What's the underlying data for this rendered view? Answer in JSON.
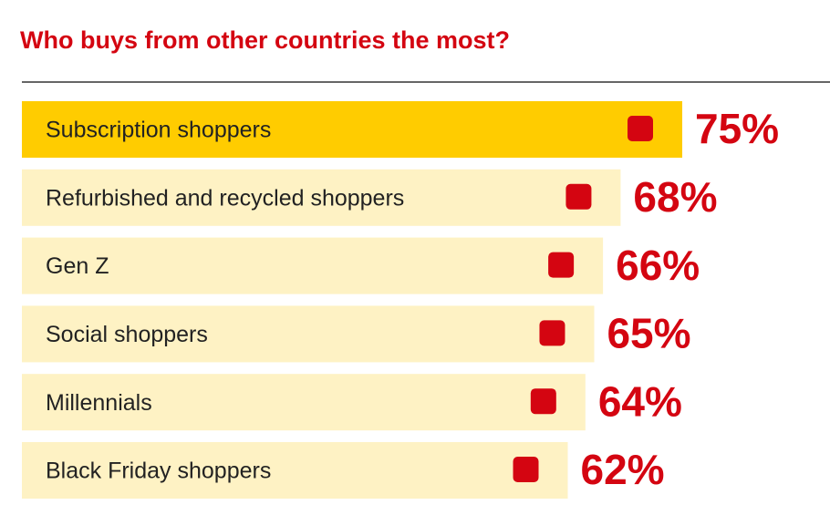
{
  "chart_data": {
    "type": "bar",
    "orientation": "horizontal",
    "title": "Who buys from other countries the most?",
    "categories": [
      "Subscription shoppers",
      "Refurbished and recycled shoppers",
      "Gen Z",
      "Social shoppers",
      "Millennials",
      "Black Friday shoppers"
    ],
    "values": [
      75,
      68,
      66,
      65,
      64,
      62
    ],
    "value_labels": [
      "75%",
      "68%",
      "66%",
      "65%",
      "64%",
      "62%"
    ],
    "colors": [
      "#ffcc00",
      "#fef2c4",
      "#fef2c4",
      "#fef2c4",
      "#fef2c4",
      "#fef2c4"
    ],
    "label_color": "#d40511"
  }
}
